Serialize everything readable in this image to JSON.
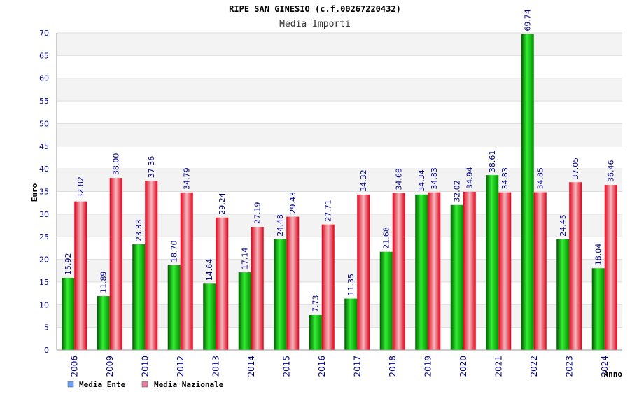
{
  "chart_data": {
    "type": "bar",
    "title": "RIPE SAN GINESIO (c.f.00267220432)",
    "subtitle": "Media Importi",
    "ylabel": "Euro",
    "xlabel": "Anno",
    "ylim": [
      0,
      70
    ],
    "yticks": [
      0,
      5,
      10,
      15,
      20,
      25,
      30,
      35,
      40,
      45,
      50,
      55,
      60,
      65,
      70
    ],
    "grid": true,
    "legend_position": "bottom-left",
    "categories": [
      "2006",
      "2009",
      "2010",
      "2012",
      "2013",
      "2014",
      "2015",
      "2016",
      "2017",
      "2018",
      "2019",
      "2020",
      "2021",
      "2022",
      "2023",
      "2024"
    ],
    "series": [
      {
        "name": "Media Ente",
        "color": "#00b400",
        "legend_color": "#66a3ff",
        "values": [
          15.92,
          11.89,
          23.33,
          18.7,
          14.64,
          17.14,
          24.48,
          7.73,
          11.35,
          21.68,
          34.34,
          32.02,
          38.61,
          69.74,
          24.45,
          18.04
        ],
        "labels": [
          "15.92",
          "11.89",
          "23.33",
          "18.70",
          "14.64",
          "17.14",
          "24.48",
          "7.73",
          "11.35",
          "21.68",
          "34.34",
          "32.02",
          "38.61",
          "69.74",
          "24.45",
          "18.04"
        ]
      },
      {
        "name": "Media Nazionale",
        "color": "#e8001c",
        "legend_color": "#e87fa0",
        "values": [
          32.82,
          38.0,
          37.36,
          34.79,
          29.24,
          27.19,
          29.43,
          27.71,
          34.32,
          34.68,
          34.83,
          34.94,
          34.83,
          34.85,
          37.05,
          36.46
        ],
        "labels": [
          "32.82",
          "38.00",
          "37.36",
          "34.79",
          "29.24",
          "27.19",
          "29.43",
          "27.71",
          "34.32",
          "34.68",
          "34.83",
          "34.94",
          "34.83",
          "34.85",
          "37.05",
          "36.46"
        ]
      }
    ]
  }
}
